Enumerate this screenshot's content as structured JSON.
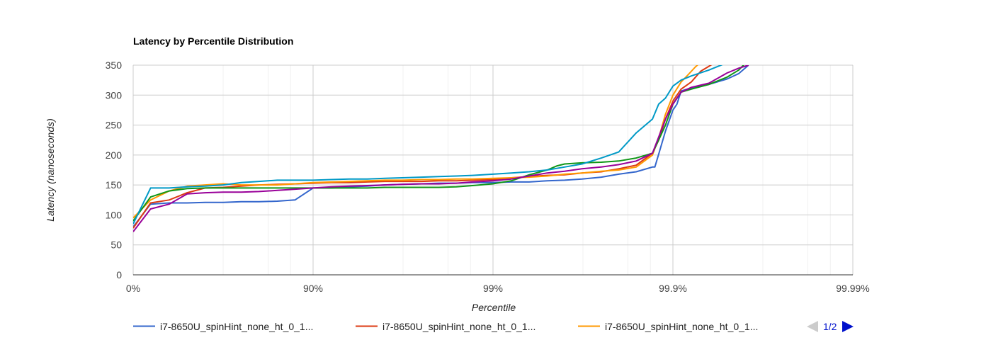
{
  "chart_data": {
    "type": "line",
    "title": "Latency by Percentile Distribution",
    "xlabel": "Percentile",
    "ylabel": "Latency (nanoseconds)",
    "x_scale": "log-percentile",
    "x_ticks": [
      "0%",
      "90%",
      "99%",
      "99.9%",
      "99.99%"
    ],
    "y_ticks": [
      "0",
      "50",
      "100",
      "150",
      "200",
      "250",
      "300",
      "350"
    ],
    "ylim": [
      0,
      350
    ],
    "grid": true,
    "legend_position": "bottom",
    "legend": [
      {
        "label": "i7-8650U_spinHint_none_ht_0_1...",
        "color": "#3366cc"
      },
      {
        "label": "i7-8650U_spinHint_none_ht_0_1...",
        "color": "#dc3912"
      },
      {
        "label": "i7-8650U_spinHint_none_ht_0_1...",
        "color": "#ff9900"
      }
    ],
    "pager": {
      "label": "1/2",
      "prev_color": "#cccccc",
      "next_color": "#0011cc"
    },
    "series": [
      {
        "color": "#3366cc",
        "values": [
          [
            0,
            80
          ],
          [
            20.0,
            118
          ],
          [
            36.9,
            120
          ],
          [
            49.9,
            120
          ],
          [
            60.2,
            121
          ],
          [
            68.4,
            121
          ],
          [
            74.9,
            122
          ],
          [
            80.0,
            122
          ],
          [
            84.2,
            123
          ],
          [
            87.4,
            125
          ],
          [
            90.0,
            145
          ],
          [
            92.1,
            145
          ],
          [
            93.7,
            147
          ],
          [
            95.0,
            148
          ],
          [
            96.0,
            150
          ],
          [
            96.8,
            151
          ],
          [
            97.5,
            152
          ],
          [
            98.0,
            153
          ],
          [
            98.4,
            153
          ],
          [
            98.7,
            154
          ],
          [
            99.0,
            154
          ],
          [
            99.21,
            155
          ],
          [
            99.37,
            155
          ],
          [
            99.5,
            157
          ],
          [
            99.6,
            158
          ],
          [
            99.68,
            160
          ],
          [
            99.75,
            163
          ],
          [
            99.8,
            168
          ],
          [
            99.84,
            172
          ],
          [
            99.87,
            180
          ],
          [
            99.874,
            180
          ],
          [
            99.881,
            205
          ],
          [
            99.89,
            240
          ],
          [
            99.9,
            275
          ],
          [
            99.905,
            285
          ],
          [
            99.91,
            307
          ],
          [
            99.921,
            312
          ],
          [
            99.937,
            318
          ],
          [
            99.95,
            327
          ],
          [
            99.957,
            336
          ],
          [
            99.962,
            350
          ]
        ]
      },
      {
        "color": "#dc3912",
        "values": [
          [
            0,
            78
          ],
          [
            20.0,
            120
          ],
          [
            36.9,
            125
          ],
          [
            49.9,
            137
          ],
          [
            60.2,
            145
          ],
          [
            68.4,
            146
          ],
          [
            74.9,
            148
          ],
          [
            80.0,
            150
          ],
          [
            84.2,
            151
          ],
          [
            87.4,
            152
          ],
          [
            90.0,
            153
          ],
          [
            92.1,
            154
          ],
          [
            93.7,
            154
          ],
          [
            95.0,
            155
          ],
          [
            96.0,
            156
          ],
          [
            96.8,
            156
          ],
          [
            97.5,
            156
          ],
          [
            98.0,
            157
          ],
          [
            98.4,
            157
          ],
          [
            98.7,
            158
          ],
          [
            99.0,
            159
          ],
          [
            99.21,
            162
          ],
          [
            99.37,
            164
          ],
          [
            99.5,
            166
          ],
          [
            99.6,
            167
          ],
          [
            99.68,
            170
          ],
          [
            99.75,
            172
          ],
          [
            99.8,
            177
          ],
          [
            99.84,
            183
          ],
          [
            99.87,
            203
          ],
          [
            99.88,
            225
          ],
          [
            99.89,
            260
          ],
          [
            99.9,
            290
          ],
          [
            99.91,
            310
          ],
          [
            99.921,
            322
          ],
          [
            99.93,
            340
          ],
          [
            99.94,
            352
          ]
        ]
      },
      {
        "color": "#ff9900",
        "values": [
          [
            0,
            95
          ],
          [
            20.0,
            125
          ],
          [
            36.9,
            140
          ],
          [
            49.9,
            148
          ],
          [
            60.2,
            150
          ],
          [
            68.4,
            152
          ],
          [
            74.9,
            150
          ],
          [
            80.0,
            150
          ],
          [
            84.2,
            150
          ],
          [
            87.4,
            152
          ],
          [
            90.0,
            154
          ],
          [
            92.1,
            155
          ],
          [
            93.7,
            156
          ],
          [
            95.0,
            157
          ],
          [
            96.0,
            158
          ],
          [
            96.8,
            158
          ],
          [
            97.5,
            159
          ],
          [
            98.0,
            159
          ],
          [
            98.4,
            160
          ],
          [
            98.7,
            160
          ],
          [
            99.0,
            161
          ],
          [
            99.21,
            162
          ],
          [
            99.37,
            163
          ],
          [
            99.5,
            165
          ],
          [
            99.6,
            168
          ],
          [
            99.68,
            170
          ],
          [
            99.75,
            173
          ],
          [
            99.8,
            175
          ],
          [
            99.84,
            180
          ],
          [
            99.87,
            200
          ],
          [
            99.88,
            228
          ],
          [
            99.89,
            268
          ],
          [
            99.9,
            300
          ],
          [
            99.91,
            322
          ],
          [
            99.917,
            333
          ],
          [
            99.925,
            347
          ],
          [
            99.93,
            355
          ]
        ]
      },
      {
        "color": "#109618",
        "values": [
          [
            0,
            90
          ],
          [
            20.0,
            130
          ],
          [
            36.9,
            140
          ],
          [
            49.9,
            144
          ],
          [
            60.2,
            145
          ],
          [
            68.4,
            145
          ],
          [
            74.9,
            145
          ],
          [
            80.0,
            145
          ],
          [
            84.2,
            145
          ],
          [
            87.4,
            145
          ],
          [
            90.0,
            145
          ],
          [
            92.1,
            145
          ],
          [
            93.7,
            145
          ],
          [
            95.0,
            145
          ],
          [
            96.0,
            146
          ],
          [
            96.8,
            146
          ],
          [
            97.5,
            146
          ],
          [
            98.0,
            146
          ],
          [
            98.4,
            147
          ],
          [
            98.7,
            149
          ],
          [
            99.0,
            152
          ],
          [
            99.21,
            157
          ],
          [
            99.37,
            167
          ],
          [
            99.5,
            175
          ],
          [
            99.56,
            182
          ],
          [
            99.6,
            185
          ],
          [
            99.68,
            187
          ],
          [
            99.75,
            188
          ],
          [
            99.8,
            190
          ],
          [
            99.84,
            195
          ],
          [
            99.87,
            203
          ],
          [
            99.88,
            225
          ],
          [
            99.89,
            250
          ],
          [
            99.9,
            285
          ],
          [
            99.91,
            305
          ],
          [
            99.921,
            310
          ],
          [
            99.937,
            318
          ],
          [
            99.95,
            330
          ],
          [
            99.957,
            342
          ],
          [
            99.96,
            352
          ]
        ]
      },
      {
        "color": "#990099",
        "values": [
          [
            0,
            72
          ],
          [
            20.0,
            110
          ],
          [
            36.9,
            118
          ],
          [
            49.9,
            135
          ],
          [
            60.2,
            137
          ],
          [
            68.4,
            138
          ],
          [
            74.9,
            138
          ],
          [
            80.0,
            139
          ],
          [
            84.2,
            141
          ],
          [
            87.4,
            143
          ],
          [
            90.0,
            145
          ],
          [
            92.1,
            147
          ],
          [
            93.7,
            148
          ],
          [
            95.0,
            149
          ],
          [
            96.0,
            150
          ],
          [
            96.8,
            151
          ],
          [
            97.5,
            152
          ],
          [
            98.0,
            152
          ],
          [
            98.4,
            153
          ],
          [
            98.7,
            155
          ],
          [
            99.0,
            157
          ],
          [
            99.21,
            160
          ],
          [
            99.37,
            165
          ],
          [
            99.5,
            170
          ],
          [
            99.6,
            173
          ],
          [
            99.68,
            177
          ],
          [
            99.75,
            180
          ],
          [
            99.8,
            184
          ],
          [
            99.84,
            190
          ],
          [
            99.87,
            203
          ],
          [
            99.88,
            230
          ],
          [
            99.89,
            260
          ],
          [
            99.9,
            285
          ],
          [
            99.91,
            305
          ],
          [
            99.921,
            313
          ],
          [
            99.937,
            320
          ],
          [
            99.95,
            337
          ],
          [
            99.957,
            345
          ],
          [
            99.962,
            350
          ]
        ]
      },
      {
        "color": "#0099c6",
        "values": [
          [
            0,
            85
          ],
          [
            20.0,
            145
          ],
          [
            36.9,
            145
          ],
          [
            49.9,
            147
          ],
          [
            60.2,
            148
          ],
          [
            68.4,
            150
          ],
          [
            74.9,
            154
          ],
          [
            80.0,
            156
          ],
          [
            84.2,
            158
          ],
          [
            87.4,
            158
          ],
          [
            90.0,
            158
          ],
          [
            92.1,
            159
          ],
          [
            93.7,
            160
          ],
          [
            95.0,
            160
          ],
          [
            96.0,
            161
          ],
          [
            96.8,
            162
          ],
          [
            97.5,
            163
          ],
          [
            98.0,
            164
          ],
          [
            98.4,
            165
          ],
          [
            98.7,
            166
          ],
          [
            99.0,
            168
          ],
          [
            99.21,
            170
          ],
          [
            99.37,
            172
          ],
          [
            99.5,
            175
          ],
          [
            99.6,
            180
          ],
          [
            99.68,
            185
          ],
          [
            99.75,
            195
          ],
          [
            99.8,
            205
          ],
          [
            99.84,
            237
          ],
          [
            99.87,
            260
          ],
          [
            99.88,
            285
          ],
          [
            99.89,
            295
          ],
          [
            99.9,
            315
          ],
          [
            99.91,
            325
          ],
          [
            99.921,
            332
          ],
          [
            99.937,
            342
          ],
          [
            99.948,
            352
          ]
        ]
      }
    ]
  }
}
